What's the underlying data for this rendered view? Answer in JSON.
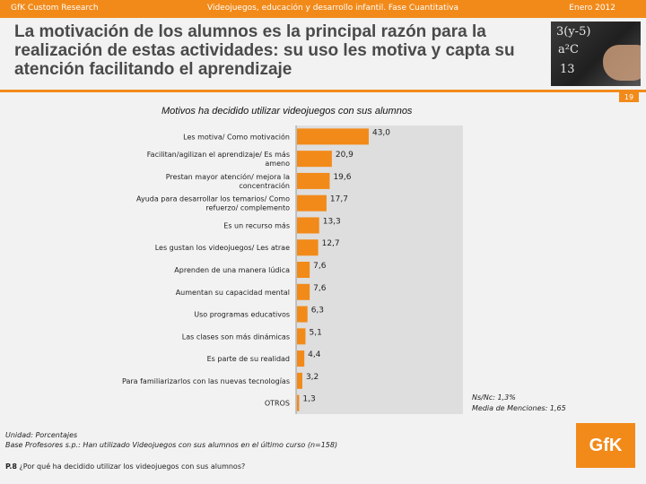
{
  "header": {
    "left": "GfK Custom Research",
    "center": "Videojuegos, educación y desarrollo infantil. Fase Cuantitativa",
    "right": "Enero 2012"
  },
  "title": "La motivación de los alumnos es la principal razón para la realización de estas actividades: su uso les motiva y capta su atención facilitando el aprendizaje",
  "page_number": "19",
  "photo_chalk": [
    "3(y-5)",
    "a²C",
    "13"
  ],
  "notes": {
    "ns_nc": "Ns/Nc: 1,3%",
    "media": "Media de Menciones: 1,65"
  },
  "footer": {
    "unidad": "Unidad: Porcentajes",
    "base": "Base Profesores s.p.: Han utilizado Videojuegos con sus alumnos en el último curso (n=158)",
    "question_code": "P.8",
    "question": "¿Por qué ha decidido utilizar los videojuegos con sus alumnos?"
  },
  "logo_text": "GfK",
  "colors": {
    "accent": "#f28a1a",
    "bar": "#f28a1a",
    "plot_bg": "#dedede",
    "page_bg": "#f2f2f2"
  },
  "chart_data": {
    "type": "bar",
    "orientation": "horizontal",
    "title": "Motivos ha decidido utilizar videojuegos con sus alumnos",
    "categories": [
      [
        "Les motiva/ Como motivación"
      ],
      [
        "Facilitan/agilizan el aprendizaje/ Es más",
        "ameno"
      ],
      [
        "Prestan mayor atención/ mejora la",
        "concentración"
      ],
      [
        "Ayuda para desarrollar los temarios/ Como",
        "refuerzo/ complemento"
      ],
      [
        "Es un recurso más"
      ],
      [
        "Les gustan los videojuegos/ Les atrae"
      ],
      [
        "Aprenden de una manera lúdica"
      ],
      [
        "Aumentan su capacidad mental"
      ],
      [
        "Uso programas educativos"
      ],
      [
        "Las clases son más dinámicas"
      ],
      [
        "Es parte de su realidad"
      ],
      [
        "Para familiarizarlos con las nuevas tecnologías"
      ],
      [
        "OTROS"
      ]
    ],
    "values": [
      43.0,
      20.9,
      19.6,
      17.7,
      13.3,
      12.7,
      7.6,
      7.6,
      6.3,
      5.1,
      4.4,
      3.2,
      1.3
    ],
    "value_labels": [
      "43,0",
      "20,9",
      "19,6",
      "17,7",
      "13,3",
      "12,7",
      "7,6",
      "7,6",
      "6,3",
      "5,1",
      "4,4",
      "3,2",
      "1,3"
    ],
    "xlim": [
      0,
      100
    ],
    "unit": "%"
  }
}
